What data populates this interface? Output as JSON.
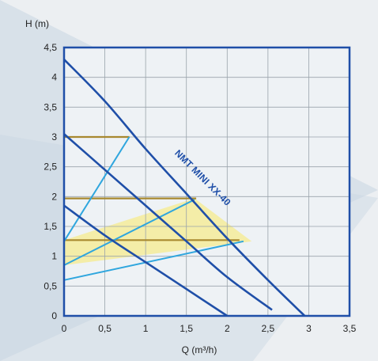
{
  "chart_data": {
    "type": "line",
    "xlabel": "Q (m³/h)",
    "ylabel": "H (m)",
    "xlim": [
      0,
      3.5
    ],
    "ylim": [
      0,
      4.5
    ],
    "x_ticks": [
      "0",
      "0,5",
      "1",
      "1,5",
      "2",
      "2,5",
      "3",
      "3,5"
    ],
    "y_ticks": [
      "0",
      "0,5",
      "1",
      "1,5",
      "2",
      "2,5",
      "3",
      "3,5",
      "4",
      "4,5"
    ],
    "grid": true,
    "curve_label": "NMT MINI XX-40",
    "pump_curves": [
      {
        "points": [
          [
            0,
            1.85
          ],
          [
            0.5,
            1.35
          ],
          [
            1.0,
            0.9
          ],
          [
            1.5,
            0.45
          ],
          [
            2.0,
            0.0
          ]
        ]
      },
      {
        "points": [
          [
            0,
            3.05
          ],
          [
            0.5,
            2.45
          ],
          [
            1.0,
            1.85
          ],
          [
            1.5,
            1.25
          ],
          [
            2.0,
            0.65
          ],
          [
            2.55,
            0.1
          ]
        ]
      },
      {
        "points": [
          [
            0,
            4.3
          ],
          [
            0.5,
            3.6
          ],
          [
            1.0,
            2.8
          ],
          [
            1.5,
            2.05
          ],
          [
            2.0,
            1.3
          ],
          [
            2.5,
            0.6
          ],
          [
            2.95,
            0.0
          ]
        ]
      }
    ],
    "constant_pressure_lines": [
      {
        "points": [
          [
            0,
            1.25
          ],
          [
            0.8,
            3.0
          ]
        ]
      },
      {
        "points": [
          [
            0,
            0.85
          ],
          [
            1.6,
            1.95
          ]
        ]
      },
      {
        "points": [
          [
            0,
            0.6
          ],
          [
            2.2,
            1.25
          ]
        ]
      }
    ],
    "setpoint_lines": [
      {
        "points": [
          [
            0,
            3.0
          ],
          [
            0.8,
            3.0
          ]
        ]
      },
      {
        "points": [
          [
            0,
            1.97
          ],
          [
            1.62,
            1.97
          ]
        ]
      },
      {
        "points": [
          [
            0,
            1.27
          ],
          [
            2.15,
            1.27
          ]
        ]
      }
    ],
    "highlight_region": [
      [
        0,
        1.27
      ],
      [
        1.6,
        1.97
      ],
      [
        2.3,
        1.25
      ],
      [
        0,
        0.85
      ]
    ],
    "colors": {
      "pump_curve": "#1f4fa8",
      "constant_pressure": "#2fa6de",
      "setpoint": "#a8892f",
      "highlight": "#f4ec9a",
      "frame": "#1f4fa8",
      "grid": "#9aa3ab",
      "background_band": "#c9d6e2"
    }
  }
}
